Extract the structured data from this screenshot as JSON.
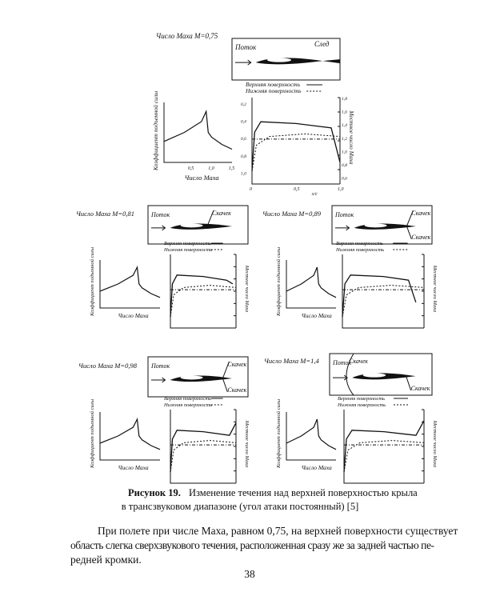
{
  "figure": {
    "panels": [
      {
        "title": "Число Маха М=0,75",
        "flow": "Поток",
        "wake": "След",
        "shocks": [],
        "legend": [
          "Верхняя поверхность",
          "Нижняя поверхность"
        ],
        "lift_label": "Коэффициент подъемной силы",
        "mach_label": "Число Маха",
        "local_label": "Местное число Маха",
        "lift_xticks": [
          "0,5",
          "1,0",
          "1,5"
        ],
        "chart_xticks": [
          "0",
          "0,5",
          "1,0"
        ],
        "chart_xlabel": "x/c",
        "chart_yticks": [
          "0,2",
          "0,4",
          "0,6",
          "0,8",
          "1,0"
        ],
        "chart_y2ticks": [
          "1,8",
          "1,6",
          "1,4",
          "1,2",
          "1,0",
          "0,8",
          "0,6"
        ]
      },
      {
        "title": "Число Маха М=0,81",
        "flow": "Поток",
        "shocks": [
          "Скачек"
        ],
        "legend": [
          "Верхняя поверхность",
          "Нижняя поверхность"
        ],
        "lift_label": "Коэффициент подъемной силы",
        "mach_label": "Число Маха",
        "local_label": "Местное число Маха"
      },
      {
        "title": "Число Маха М=0,89",
        "flow": "Поток",
        "shocks": [
          "Скачек",
          "Скачек"
        ],
        "legend": [
          "Верхняя поверхность",
          "Нижняя поверхность"
        ],
        "lift_label": "Коэффициент подъемной силы",
        "mach_label": "Число Маха",
        "local_label": "Местное число Маха"
      },
      {
        "title": "Число Маха М=0,98",
        "flow": "Поток",
        "shocks": [
          "Скачек",
          "Скачек"
        ],
        "legend": [
          "Верхняя поверхность",
          "Нижняя поверхность"
        ],
        "lift_label": "Коэффициент подъемной силы",
        "mach_label": "Число Маха",
        "local_label": "Местное число Маха"
      },
      {
        "title": "Число Маха М=1,4",
        "flow": "Поток",
        "shocks": [
          "Скачек",
          "Скачек"
        ],
        "legend": [
          "Верхняя поверхность",
          "Нижняя поверхность"
        ],
        "lift_label": "Коэффициент подъемной силы",
        "mach_label": "Число Маха",
        "local_label": "Местное число Маха"
      }
    ],
    "caption_label": "Рисунок 19.",
    "caption_lines": [
      "Изменение течения над верхней поверхностью крыла",
      "в трансзвуковом диапазоне (угол атаки постоянный) [5]"
    ]
  },
  "body": {
    "lines": [
      "При полете при числе Маха, равном 0,75, на верхней поверхности существует",
      "область слегка сверхзвукового течения, расположенная сразу же за задней частью пе-",
      "редней кромки."
    ]
  },
  "page_number": "38"
}
